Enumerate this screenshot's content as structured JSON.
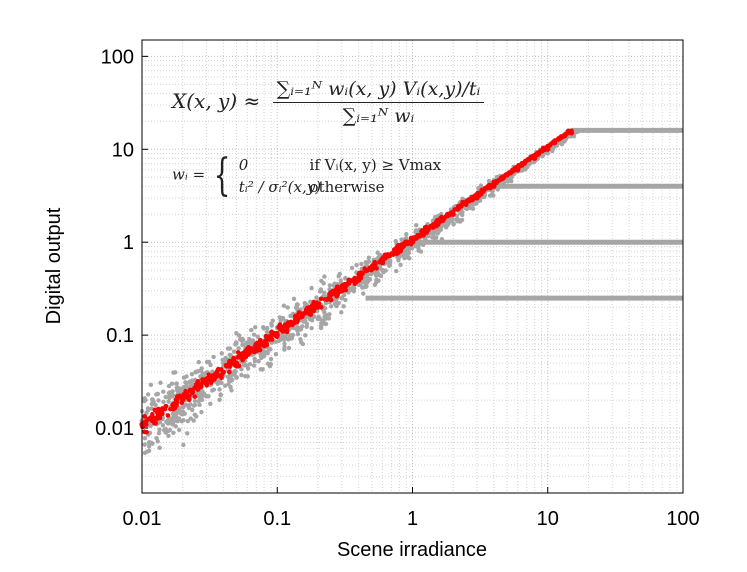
{
  "chart_data": {
    "type": "scatter",
    "xlabel": "Scene irradiance",
    "ylabel": "Digital output",
    "xscale": "log",
    "yscale": "log",
    "xlim": [
      0.01,
      100
    ],
    "ylim": [
      0.002,
      150
    ],
    "grid": true,
    "x_ticks": [
      "0.01",
      "0.1",
      "1",
      "10",
      "100"
    ],
    "y_ticks": [
      "0.01",
      "0.1",
      "1",
      "10",
      "100"
    ],
    "series": [
      {
        "color": "#a6a6a6",
        "description_values": "gray scattered measurements around y = x with decreasing spread",
        "x": [
          0.01,
          0.012,
          0.015,
          0.018,
          0.02,
          0.025,
          0.03,
          0.04,
          0.05,
          0.06,
          0.08,
          0.1,
          0.13,
          0.16,
          0.2,
          0.25,
          0.3,
          0.4,
          0.5,
          0.6,
          0.8,
          1.0,
          1.3,
          1.6,
          2.0,
          2.5,
          3.0,
          4.0,
          5.0,
          6.0,
          8.0,
          10.0,
          12.0,
          15.0
        ],
        "y": [
          0.012,
          0.02,
          0.009,
          0.03,
          0.015,
          0.04,
          0.022,
          0.05,
          0.035,
          0.08,
          0.06,
          0.12,
          0.1,
          0.2,
          0.15,
          0.3,
          0.25,
          0.35,
          0.55,
          0.5,
          0.75,
          1.1,
          1.2,
          1.5,
          2.2,
          2.4,
          3.2,
          3.9,
          5.2,
          5.8,
          8.3,
          10.2,
          11.8,
          15.5
        ]
      },
      {
        "color": "#ff0000",
        "description_values": "red merged estimate along y = x",
        "x": [
          0.01,
          0.013,
          0.017,
          0.02,
          0.03,
          0.04,
          0.05,
          0.07,
          0.1,
          0.14,
          0.2,
          0.3,
          0.4,
          0.6,
          0.8,
          1.0,
          1.5,
          2.0,
          3.0,
          4.0,
          6.0,
          8.0,
          10.0,
          15.0
        ],
        "y": [
          0.011,
          0.013,
          0.016,
          0.02,
          0.03,
          0.04,
          0.05,
          0.07,
          0.1,
          0.14,
          0.2,
          0.3,
          0.4,
          0.6,
          0.8,
          1.0,
          1.5,
          2.0,
          3.0,
          4.0,
          6.0,
          8.0,
          10.0,
          15.0
        ]
      }
    ],
    "saturation_lines": [
      {
        "y": 16.0,
        "x_start": 15.0,
        "x_end": 100
      },
      {
        "y": 4.0,
        "x_start": 4.0,
        "x_end": 100
      },
      {
        "y": 1.0,
        "x_start": 1.0,
        "x_end": 100
      },
      {
        "y": 0.25,
        "x_start": 0.45,
        "x_end": 100
      }
    ]
  },
  "formula": {
    "lhs": "X(x, y) ≈",
    "numerator": "∑ᵢ₌₁ᴺ wᵢ(x, y) Vᵢ(x,y)/tᵢ",
    "denominator": "∑ᵢ₌₁ᴺ wᵢ",
    "weight_lhs": "wᵢ =",
    "case1_value": "0",
    "case1_condition": "if Vᵢ(x, y) ≥ Vmax",
    "case2_value": "tᵢ² / σᵢ²(x,y)",
    "case2_condition": "otherwise"
  }
}
